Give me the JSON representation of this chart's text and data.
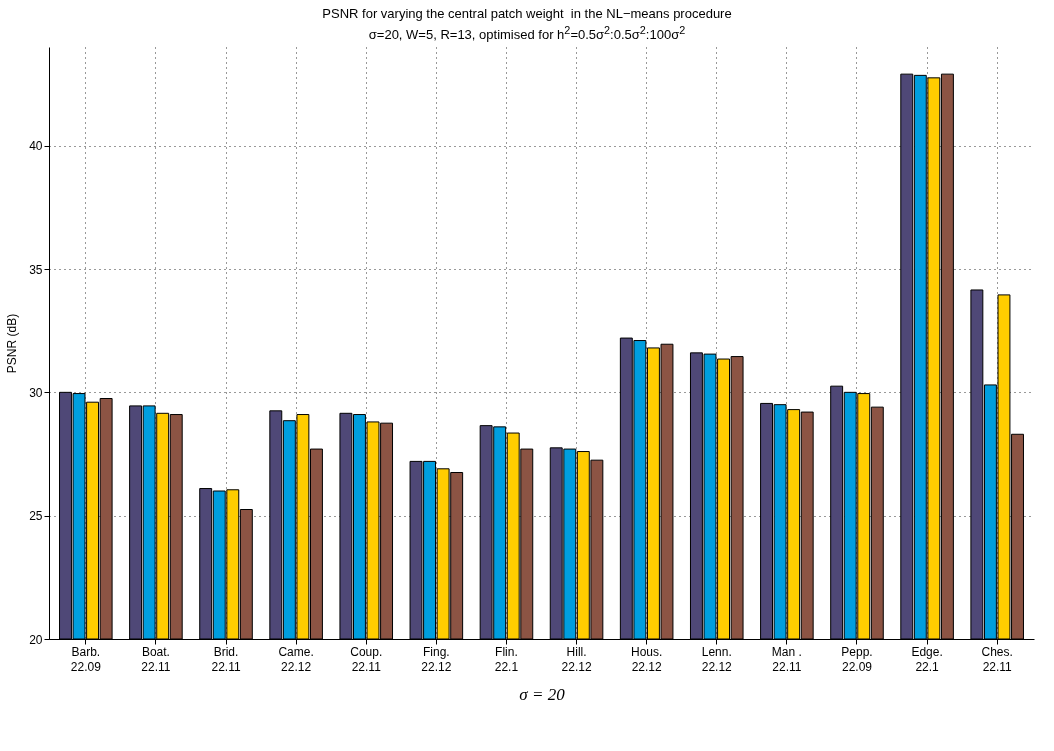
{
  "chart_data": {
    "type": "bar",
    "title": "PSNR for varying the central patch weight  in the NL−means procedure",
    "subtitle": "σ=20, W=5, R=13, optimised for h$^{2}$=0.5σ$^{2}$:0.5σ$^{2}$:100σ$^{2}$",
    "xlabel": "σ = 20",
    "ylabel": "PSNR (dB)",
    "categories": [
      "Barb.\n22.09",
      "Boat.\n22.11",
      "Brid.\n22.11",
      "Came.\n22.12",
      "Coup.\n22.11",
      "Fing.\n22.12",
      "Flin.\n22.1",
      "Hill.\n22.12",
      "Hous.\n22.12",
      "Lenn.\n22.12",
      "Man .\n22.11",
      "Pepp.\n22.09",
      "Edge.\n22.1",
      "Ches.\n22.11"
    ],
    "series": [
      {
        "color": "#4f4877",
        "values": [
          30.0,
          29.45,
          26.1,
          29.25,
          29.15,
          27.2,
          28.65,
          27.75,
          32.2,
          31.6,
          29.55,
          30.25,
          42.9,
          34.15
        ]
      },
      {
        "color": "#009ede",
        "values": [
          29.95,
          29.45,
          26.0,
          28.85,
          29.1,
          27.2,
          28.6,
          27.7,
          32.1,
          31.55,
          29.5,
          30.0,
          42.85,
          30.3
        ]
      },
      {
        "color": "#ffcd00",
        "values": [
          29.6,
          29.15,
          26.05,
          29.1,
          28.8,
          26.9,
          28.35,
          27.6,
          31.8,
          31.35,
          29.3,
          29.95,
          42.75,
          33.95
        ]
      },
      {
        "color": "#8c5444",
        "values": [
          29.75,
          29.1,
          25.25,
          27.7,
          28.75,
          26.75,
          27.7,
          27.25,
          31.95,
          31.45,
          29.2,
          29.4,
          42.9,
          28.3
        ]
      }
    ],
    "ylim": [
      20,
      44
    ],
    "yticks": [
      20,
      25,
      30,
      35,
      40
    ],
    "grid": true
  }
}
